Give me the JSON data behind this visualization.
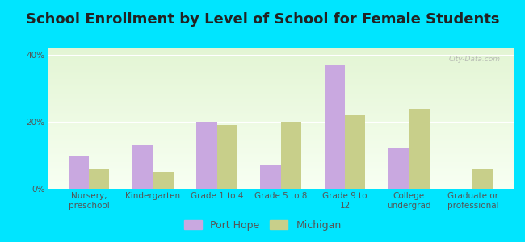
{
  "title": "School Enrollment by Level of School for Female Students",
  "categories": [
    "Nursery,\npreschool",
    "Kindergarten",
    "Grade 1 to 4",
    "Grade 5 to 8",
    "Grade 9 to\n12",
    "College\nundergrad",
    "Graduate or\nprofessional"
  ],
  "port_hope": [
    10,
    13,
    20,
    7,
    37,
    12,
    0
  ],
  "michigan": [
    6,
    5,
    19,
    20,
    22,
    24,
    6
  ],
  "bar_color_port_hope": "#c9a8e0",
  "bar_color_michigan": "#c8cf8a",
  "background_outer": "#00e5ff",
  "yticks": [
    0,
    20,
    40
  ],
  "ylim": [
    0,
    42
  ],
  "legend_port_hope": "Port Hope",
  "legend_michigan": "Michigan",
  "watermark": "City-Data.com",
  "title_fontsize": 13,
  "tick_fontsize": 7.5,
  "legend_fontsize": 9,
  "bar_width": 0.32
}
